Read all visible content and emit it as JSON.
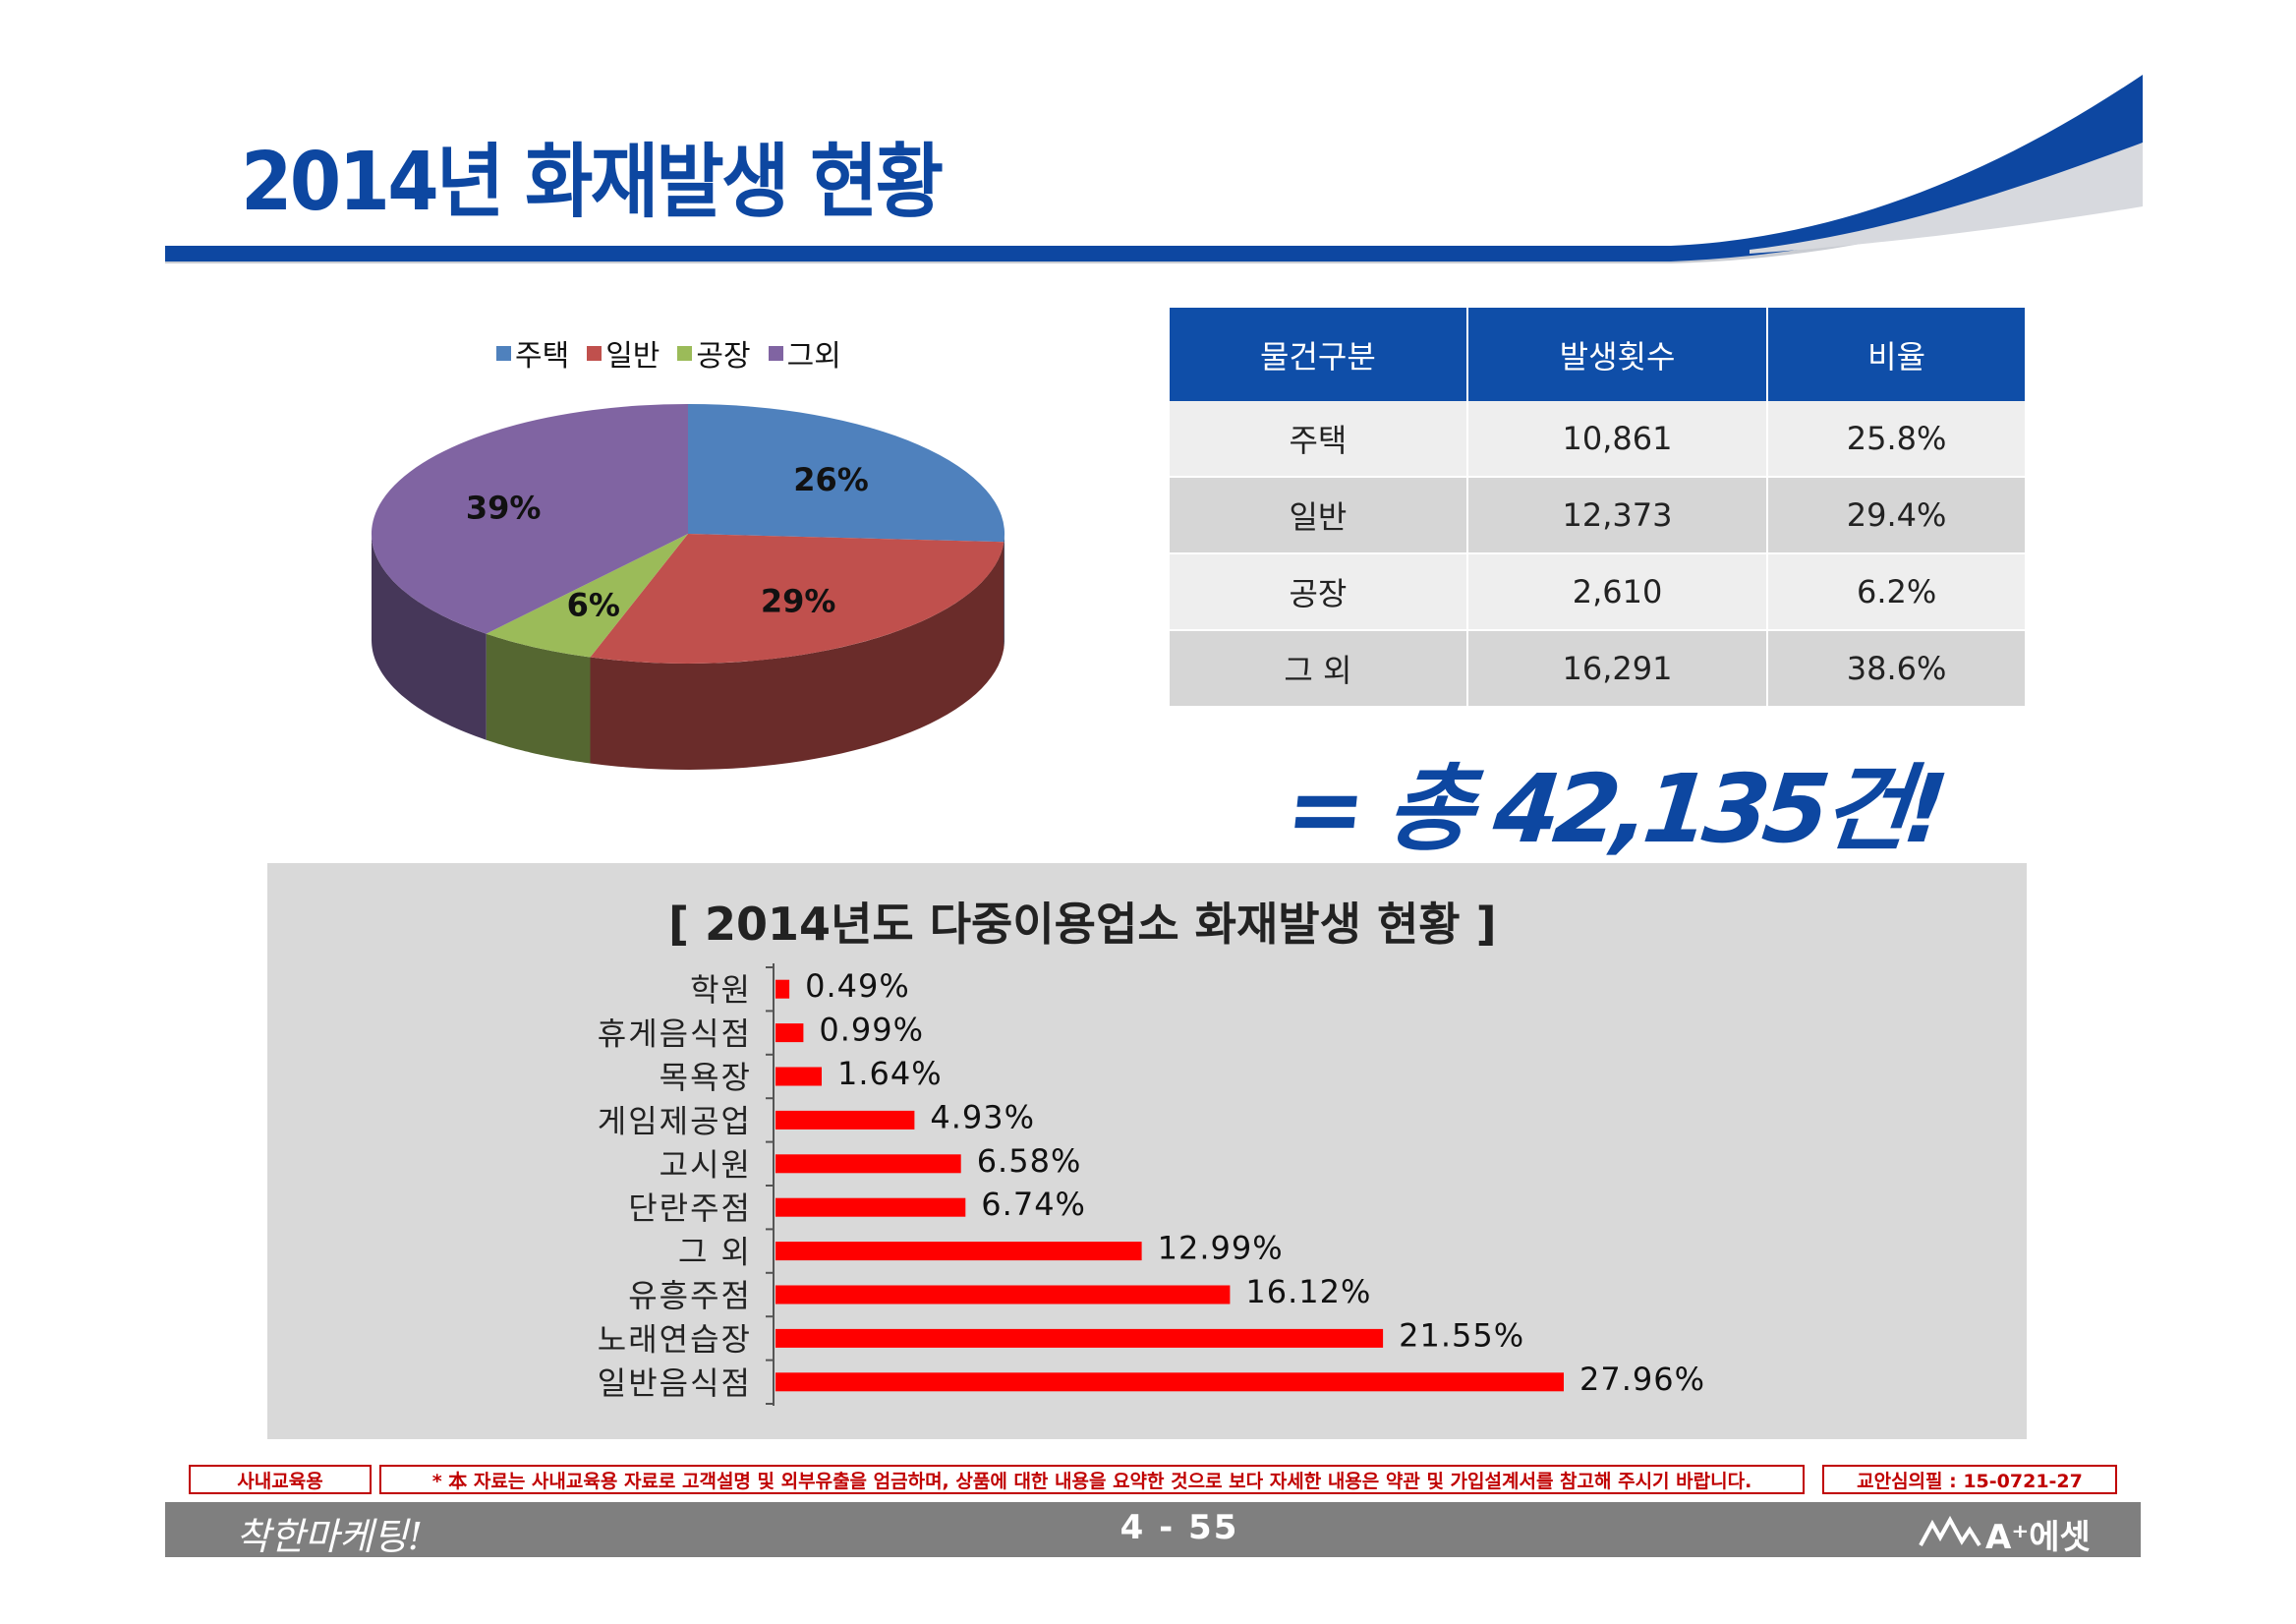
{
  "header": {
    "title": "2014년 화재발생 현황"
  },
  "table": {
    "headers": [
      "물건구분",
      "발생횟수",
      "비율"
    ],
    "rows": [
      [
        "주택",
        "10,861",
        "25.8%"
      ],
      [
        "일반",
        "12,373",
        "29.4%"
      ],
      [
        "공장",
        "2,610",
        "6.2%"
      ],
      [
        "그 외",
        "16,291",
        "38.6%"
      ]
    ]
  },
  "total": "= 총 42,135건!",
  "chart_data": [
    {
      "type": "pie",
      "categories": [
        "주택",
        "일반",
        "공장",
        "그외"
      ],
      "values": [
        26,
        29,
        6,
        39
      ],
      "data_labels": [
        "26%",
        "29%",
        "6%",
        "39%"
      ],
      "colors": [
        "#4f81bd",
        "#c0504d",
        "#9bbb59",
        "#8064a2"
      ],
      "legend": "top"
    },
    {
      "type": "bar",
      "orientation": "horizontal",
      "title": "[   2014년도 다중이용업소 화재발생 현황   ]",
      "categories": [
        "학원",
        "휴게음식점",
        "목욕장",
        "게임제공업",
        "고시원",
        "단란주점",
        "그 외",
        "유흥주점",
        "노래연습장",
        "일반음식점"
      ],
      "values": [
        0.49,
        0.99,
        1.64,
        4.93,
        6.58,
        6.74,
        12.99,
        16.12,
        21.55,
        27.96
      ],
      "data_labels": [
        "0.49%",
        "0.99%",
        "1.64%",
        "4.93%",
        "6.58%",
        "6.74%",
        "12.99%",
        "16.12%",
        "21.55%",
        "27.96%"
      ],
      "color": "#ff0000"
    }
  ],
  "footer": {
    "left": "사내교육용",
    "notice": "* 本 자료는 사내교육용 자료로 고객설명 및 외부유출을 엄금하며, 상품에 대한 내용을 요약한 것으로 보다 자세한 내용은 약관 및 가입설계서를 참고해 주시기 바랍니다.",
    "review": "교안심의필 : 15-0721-27",
    "page": "4 - 55",
    "slogan": "착한마케팅!",
    "brand": "A⁺에셋"
  },
  "colors": {
    "brand_blue": "#0d47a1",
    "header_blue": "#0f4ea8",
    "bar_red": "#ff0000"
  }
}
